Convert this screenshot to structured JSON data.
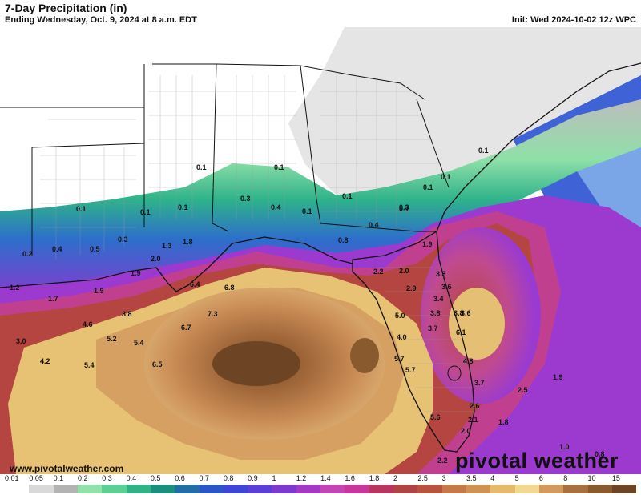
{
  "header": {
    "title": "7-Day Precipitation (in)",
    "subtitle": "Ending Wednesday, Oct. 9, 2024 at 8 a.m. EDT",
    "init": "Init: Wed 2024-10-02 12z WPC"
  },
  "watermark": "www.pivotalweather.com",
  "brand": "pivotal weather",
  "map_values": [
    "0.1",
    "0.1",
    "0.1",
    "0.1",
    "0.1",
    "0.1",
    "0.1",
    "0.1",
    "0.1",
    "0.1",
    "0.2",
    "0.4",
    "0.5",
    "0.3",
    "0.3",
    "0.4",
    "0.1",
    "0.3",
    "0.4",
    "0.8",
    "1.3",
    "1.8",
    "1.2",
    "1.9",
    "2.0",
    "1.7",
    "1.9",
    "1.9",
    "2.2",
    "2.0",
    "2.9",
    "3.3",
    "3.6",
    "3.4",
    "3.8",
    "3.7",
    "3.8",
    "5.0",
    "6.1",
    "3.6",
    "4.6",
    "3.8",
    "6.4",
    "6.8",
    "7.3",
    "6.7",
    "3.0",
    "5.2",
    "5.4",
    "4.2",
    "5.4",
    "6.5",
    "4.0",
    "5.7",
    "5.7",
    "4.8",
    "3.7",
    "2.6",
    "2.1",
    "1.9",
    "2.5",
    "1.8",
    "5.6",
    "2.0",
    "2.2",
    "1.0",
    "0.8"
  ],
  "legend": {
    "labels": [
      "0.01",
      "0.05",
      "0.1",
      "0.2",
      "0.3",
      "0.4",
      "0.5",
      "0.6",
      "0.7",
      "0.8",
      "0.9",
      "1",
      "1.2",
      "1.4",
      "1.6",
      "1.8",
      "2",
      "2.5",
      "3",
      "3.5",
      "4",
      "5",
      "6",
      "8",
      "10",
      "15"
    ],
    "colors": [
      "#ffffff",
      "#d9d9d9",
      "#b3b3b3",
      "#8ee2aa",
      "#5ccf94",
      "#2fb386",
      "#1a8f7c",
      "#1f6fa6",
      "#2a55c8",
      "#3d44d6",
      "#5b3ed8",
      "#7d39cf",
      "#a437c4",
      "#c244b5",
      "#c8359c",
      "#b8355e",
      "#b04442",
      "#b8543d",
      "#c57a45",
      "#cf9252",
      "#e5bb6b",
      "#f2d98f",
      "#d39a5c",
      "#a8703e",
      "#8a5a2f",
      "#6e4524"
    ]
  }
}
